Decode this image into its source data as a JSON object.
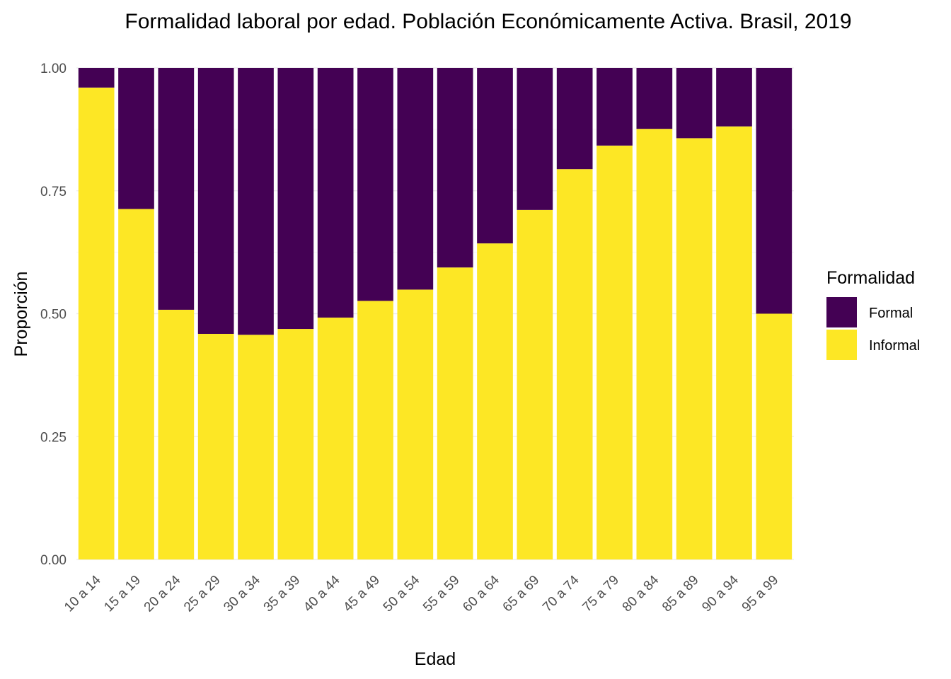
{
  "chart_data": {
    "type": "bar",
    "stacked": true,
    "title": "Formalidad laboral por edad. Población Económicamente Activa. Brasil, 2019",
    "xlabel": "Edad",
    "ylabel": "Proporción",
    "ylim": [
      0,
      1
    ],
    "yticks": [
      "0.00",
      "0.25",
      "0.50",
      "0.75",
      "1.00"
    ],
    "grid": true,
    "legend": {
      "title": "Formalidad",
      "placement": "right"
    },
    "categories": [
      "10 a 14",
      "15 a 19",
      "20 a 24",
      "25 a 29",
      "30 a 34",
      "35 a 39",
      "40 a 44",
      "45 a 49",
      "50 a 54",
      "55 a 59",
      "60 a 64",
      "65 a 69",
      "70 a 74",
      "75 a 79",
      "80 a 84",
      "85 a 89",
      "90 a 94",
      "95 a 99"
    ],
    "series": [
      {
        "name": "Informal",
        "color": "#fde725",
        "values": [
          0.96,
          0.713,
          0.508,
          0.459,
          0.457,
          0.469,
          0.492,
          0.526,
          0.549,
          0.594,
          0.643,
          0.711,
          0.794,
          0.842,
          0.876,
          0.857,
          0.881,
          0.5
        ]
      },
      {
        "name": "Formal",
        "color": "#440154",
        "values": [
          0.04,
          0.287,
          0.492,
          0.541,
          0.543,
          0.531,
          0.508,
          0.474,
          0.451,
          0.406,
          0.357,
          0.289,
          0.206,
          0.158,
          0.124,
          0.143,
          0.119,
          0.5
        ]
      }
    ]
  }
}
